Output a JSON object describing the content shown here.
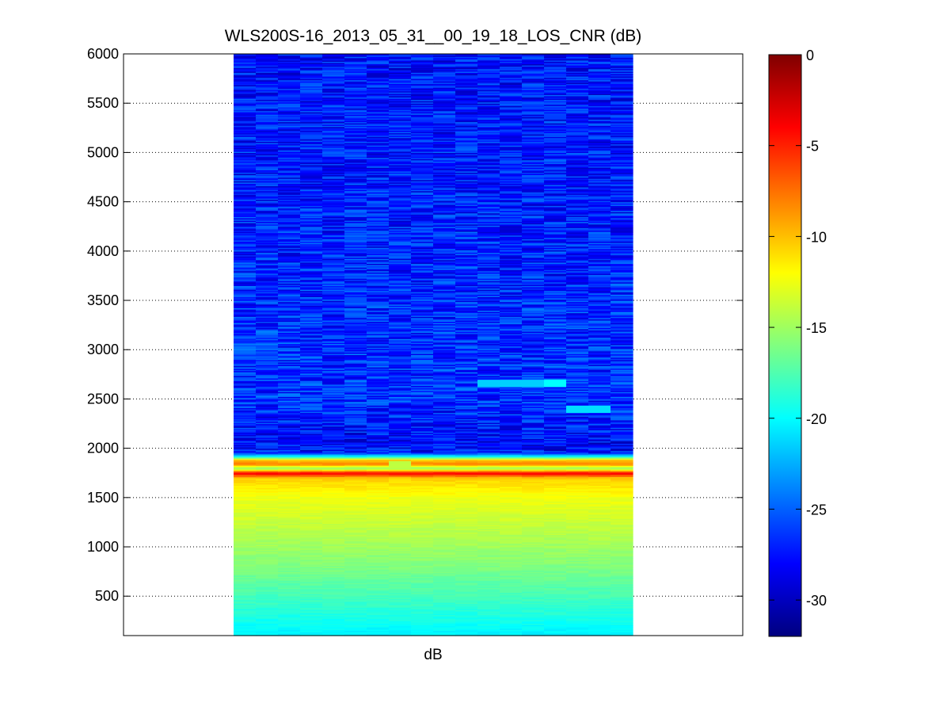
{
  "chart_data": {
    "type": "heatmap",
    "title": "WLS200S-16_2013_05_31__00_19_18_LOS_CNR (dB)",
    "xlabel": "dB",
    "ylabel": "",
    "ylim": [
      100,
      6000
    ],
    "yticks": [
      500,
      1000,
      1500,
      2000,
      2500,
      3000,
      3500,
      4000,
      4500,
      5000,
      5500,
      6000
    ],
    "y_grid": true,
    "colormap": "jet",
    "colorbar": {
      "range": [
        -32,
        0
      ],
      "ticks": [
        0,
        -5,
        -10,
        -15,
        -20,
        -25,
        -30
      ]
    },
    "n_columns": 18,
    "profile": [
      {
        "y": 100,
        "value": -20.5
      },
      {
        "y": 400,
        "value": -18.5
      },
      {
        "y": 800,
        "value": -16.0
      },
      {
        "y": 1200,
        "value": -14.0
      },
      {
        "y": 1500,
        "value": -12.5
      },
      {
        "y": 1700,
        "value": -10.5
      },
      {
        "y": 1750,
        "value": -3.5
      },
      {
        "y": 1800,
        "value": -16.0
      },
      {
        "y": 1840,
        "value": -8.0
      },
      {
        "y": 1880,
        "value": -10.0
      },
      {
        "y": 1920,
        "value": -20.0
      },
      {
        "y": 1960,
        "value": -27.0
      },
      {
        "y": 2000,
        "value": -28.0
      },
      {
        "y": 2500,
        "value": -26.5
      },
      {
        "y": 3000,
        "value": -26.5
      },
      {
        "y": 4000,
        "value": -27.0
      },
      {
        "y": 6000,
        "value": -27.5
      }
    ],
    "annotations": [
      {
        "y": 2400,
        "columns": [
          15,
          16
        ],
        "value": -21.0
      },
      {
        "y": 2660,
        "columns": [
          11,
          12,
          13
        ],
        "value": -21.5
      },
      {
        "y": 2660,
        "columns": [
          14
        ],
        "value": -20.0
      },
      {
        "y": 1840,
        "columns": [
          7
        ],
        "value": -14.0
      }
    ]
  }
}
